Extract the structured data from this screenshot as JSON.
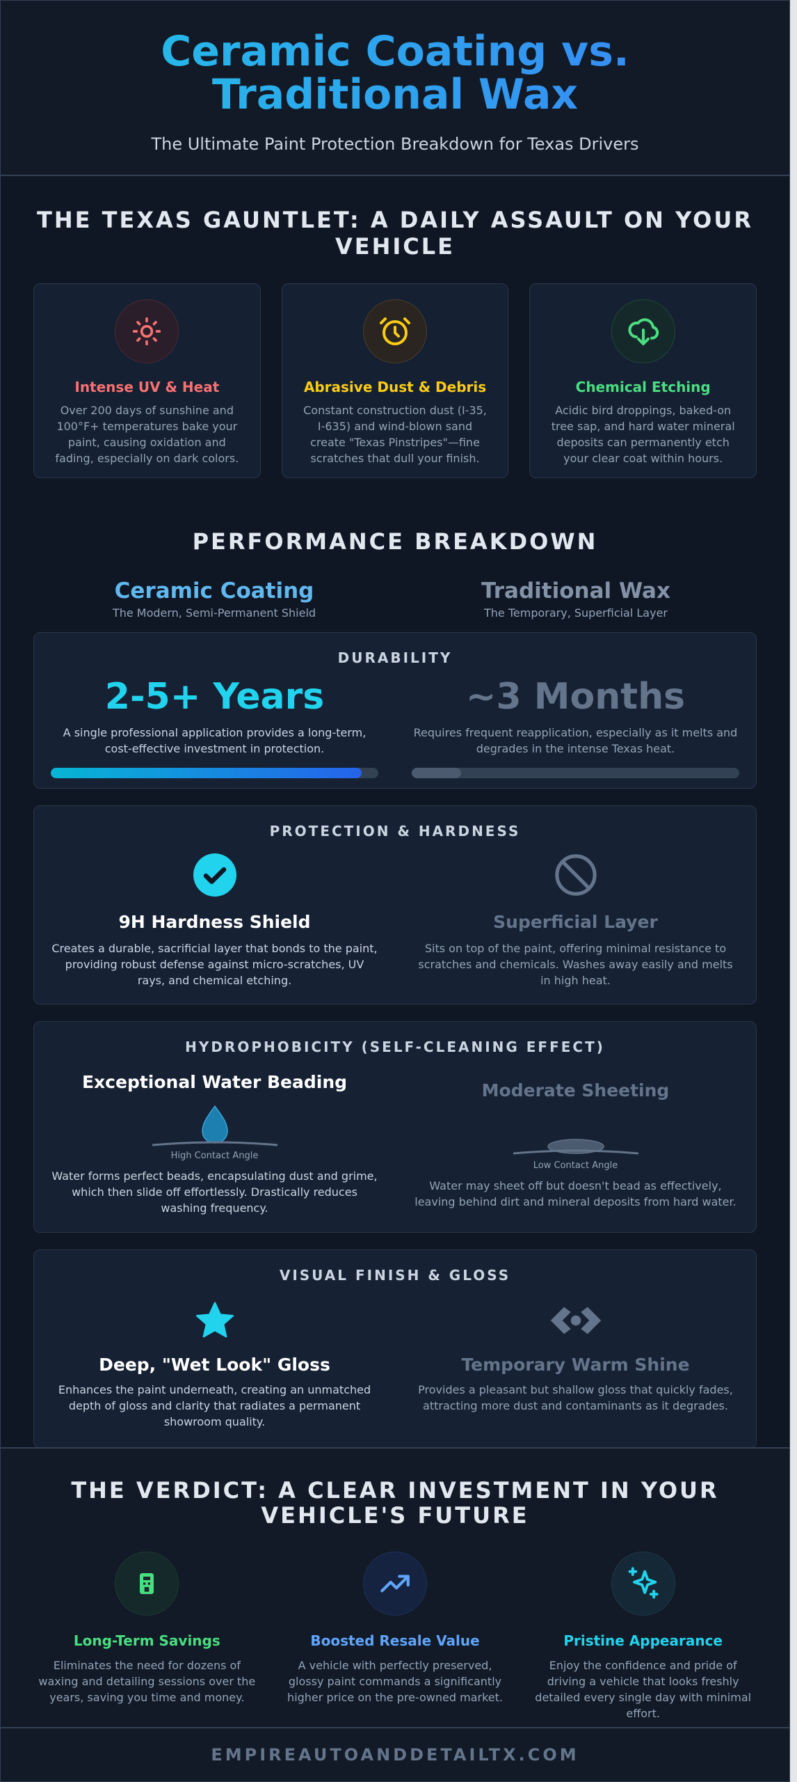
{
  "hero": {
    "title": "Ceramic Coating vs. Traditional Wax",
    "subtitle": "The Ultimate Paint Protection Breakdown for Texas Drivers"
  },
  "gauntlet": {
    "title": "THE TEXAS GAUNTLET: A DAILY ASSAULT ON YOUR VEHICLE",
    "cards": [
      {
        "title": "Intense UV & Heat",
        "icon": "sun-icon",
        "color": "#f87171",
        "text": "Over 200 days of sunshine and 100°F+ temperatures bake your paint, causing oxidation and fading, especially on dark colors."
      },
      {
        "title": "Abrasive Dust & Debris",
        "icon": "clock-icon",
        "color": "#facc15",
        "text": "Constant construction dust (I-35, I-635) and wind-blown sand create \"Texas Pinstripes\"—fine scratches that dull your finish."
      },
      {
        "title": "Chemical Etching",
        "icon": "cloud-download-icon",
        "color": "#4ade80",
        "text": "Acidic bird droppings, baked-on tree sap, and hard water mineral deposits can permanently etch your clear coat within hours."
      }
    ]
  },
  "performance": {
    "title": "PERFORMANCE BREAKDOWN",
    "ceramic": {
      "name": "Ceramic Coating",
      "tagline": "The Modern, Semi-Permanent Shield",
      "color": "#60b8f0"
    },
    "wax": {
      "name": "Traditional Wax",
      "tagline": "The Temporary, Superficial Layer",
      "color": "#8392a6"
    },
    "durability": {
      "title": "DURABILITY",
      "ceramic_value": "2-5+ Years",
      "ceramic_text": "A single professional application provides a long-term, cost-effective investment in protection.",
      "ceramic_fill": 0.95,
      "wax_value": "~3 Months",
      "wax_text": "Requires frequent reapplication, especially as it melts and degrades in the intense Texas heat.",
      "wax_fill": 0.15
    },
    "protection": {
      "title": "PROTECTION & HARDNESS",
      "ceramic_title": "9H Hardness Shield",
      "ceramic_text": "Creates a durable, sacrificial layer that bonds to the paint, providing robust defense against micro-scratches, UV rays, and chemical etching.",
      "wax_title": "Superficial Layer",
      "wax_text": "Sits on top of the paint, offering minimal resistance to scratches and chemicals. Washes away easily and melts in high heat."
    },
    "hydrophobicity": {
      "title": "HYDROPHOBICITY (SELF-CLEANING EFFECT)",
      "ceramic_title": "Exceptional Water Beading",
      "ceramic_label": "High Contact Angle",
      "ceramic_text": "Water forms perfect beads, encapsulating dust and grime, which then slide off effortlessly. Drastically reduces washing frequency.",
      "wax_title": "Moderate Sheeting",
      "wax_label": "Low Contact Angle",
      "wax_text": "Water may sheet off but doesn't bead as effectively, leaving behind dirt and mineral deposits from hard water."
    },
    "finish": {
      "title": "VISUAL FINISH & GLOSS",
      "ceramic_title": "Deep, \"Wet Look\" Gloss",
      "ceramic_text": "Enhances the paint underneath, creating an unmatched depth of gloss and clarity that radiates a permanent showroom quality.",
      "wax_title": "Temporary Warm Shine",
      "wax_text": "Provides a pleasant but shallow gloss that quickly fades, attracting more dust and contaminants as it degrades."
    }
  },
  "verdict": {
    "title": "THE VERDICT: A CLEAR INVESTMENT IN YOUR VEHICLE'S FUTURE",
    "items": [
      {
        "title": "Long-Term Savings",
        "color": "#4ade80",
        "icon": "piggy-bank-icon",
        "text": "Eliminates the need for dozens of waxing and detailing sessions over the years, saving you time and money."
      },
      {
        "title": "Boosted Resale Value",
        "color": "#60a5fa",
        "icon": "trending-up-icon",
        "text": "A vehicle with perfectly preserved, glossy paint commands a significantly higher price on the pre-owned market."
      },
      {
        "title": "Pristine Appearance",
        "color": "#22d3ee",
        "icon": "sparkle-icon",
        "text": "Enjoy the confidence and pride of driving a vehicle that looks freshly detailed every single day with minimal effort."
      }
    ]
  },
  "footer": {
    "site": "EMPIREAUTOANDDETAILTX.COM"
  }
}
